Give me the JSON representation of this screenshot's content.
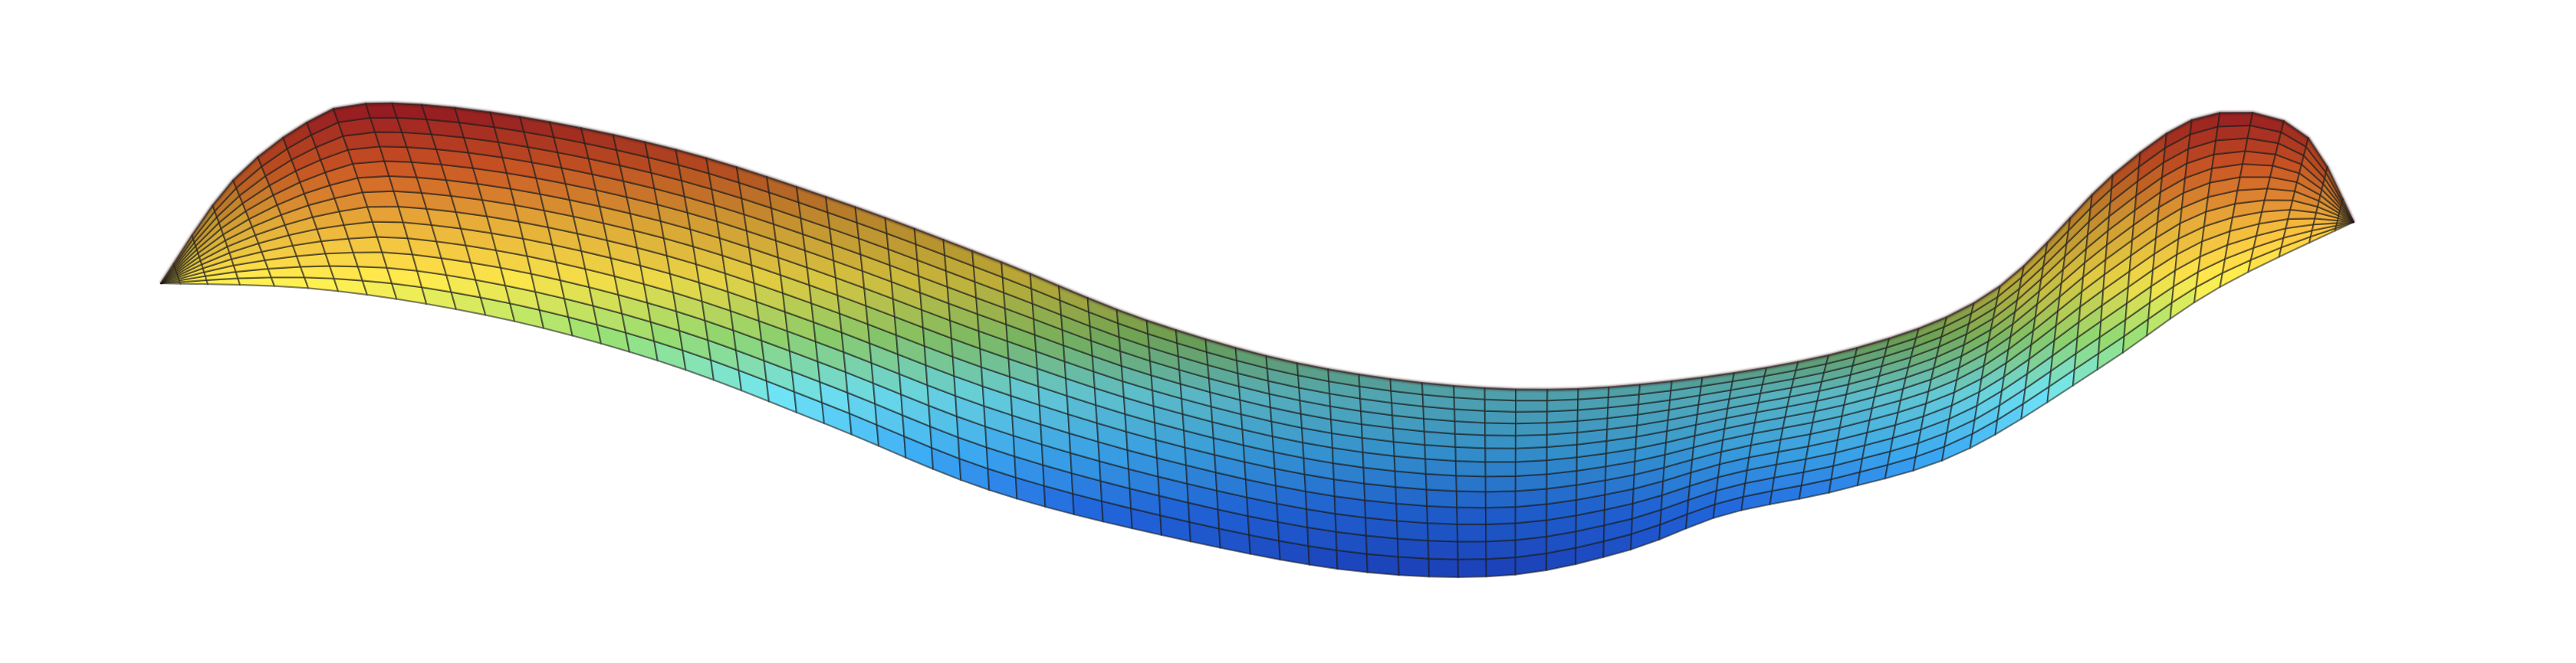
{
  "image": {
    "subject": "surface-mesh",
    "background": "#ffffff",
    "colormap": [
      "#c8222d",
      "#f0622a",
      "#f8b93c",
      "#f7e24a",
      "#8fd36e",
      "#6ad7e6",
      "#3aa3e6",
      "#1f60cf",
      "#1a3fae"
    ],
    "mesh_line_color": "#1c1c1c"
  }
}
